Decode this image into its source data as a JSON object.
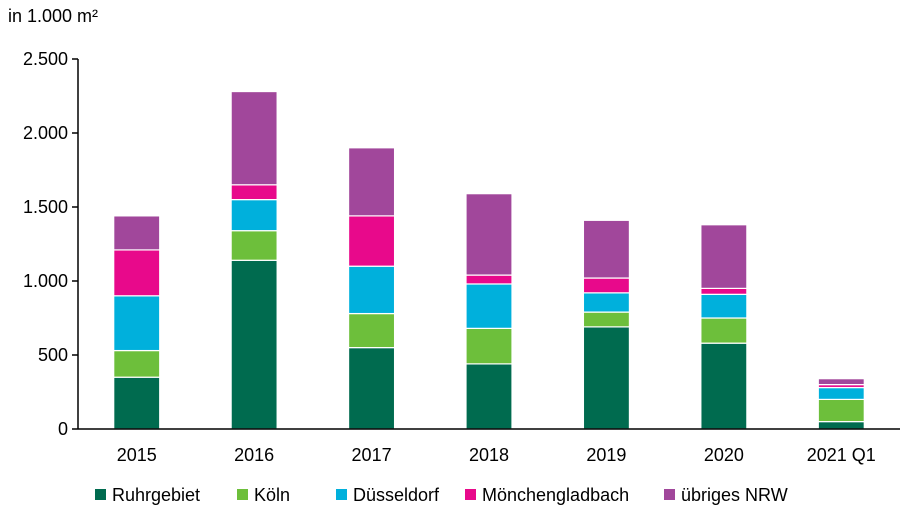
{
  "chart_data": {
    "type": "bar",
    "stacked": true,
    "unit_label": "in 1.000 m²",
    "categories": [
      "2015",
      "2016",
      "2017",
      "2018",
      "2019",
      "2020",
      "2021 Q1"
    ],
    "series": [
      {
        "name": "Ruhrgebiet",
        "color": "#006b4f",
        "values": [
          350,
          1140,
          550,
          440,
          690,
          580,
          50
        ]
      },
      {
        "name": "Köln",
        "color": "#6dbf3b",
        "values": [
          180,
          200,
          230,
          240,
          100,
          170,
          150
        ]
      },
      {
        "name": "Düsseldorf",
        "color": "#00b0dc",
        "values": [
          370,
          210,
          320,
          300,
          130,
          160,
          80
        ]
      },
      {
        "name": "Mönchengladbach",
        "color": "#e8098b",
        "values": [
          310,
          100,
          340,
          60,
          100,
          40,
          20
        ]
      },
      {
        "name": "übriges NRW",
        "color": "#a1479b",
        "values": [
          230,
          630,
          460,
          550,
          390,
          430,
          40
        ]
      }
    ],
    "ylim": [
      0,
      2500
    ],
    "yticks": [
      0,
      500,
      1000,
      1500,
      2000,
      2500
    ],
    "ytick_labels": [
      "0",
      "500",
      "1.000",
      "1.500",
      "2.000",
      "2.500"
    ],
    "grid": false,
    "legend_position": "bottom"
  }
}
